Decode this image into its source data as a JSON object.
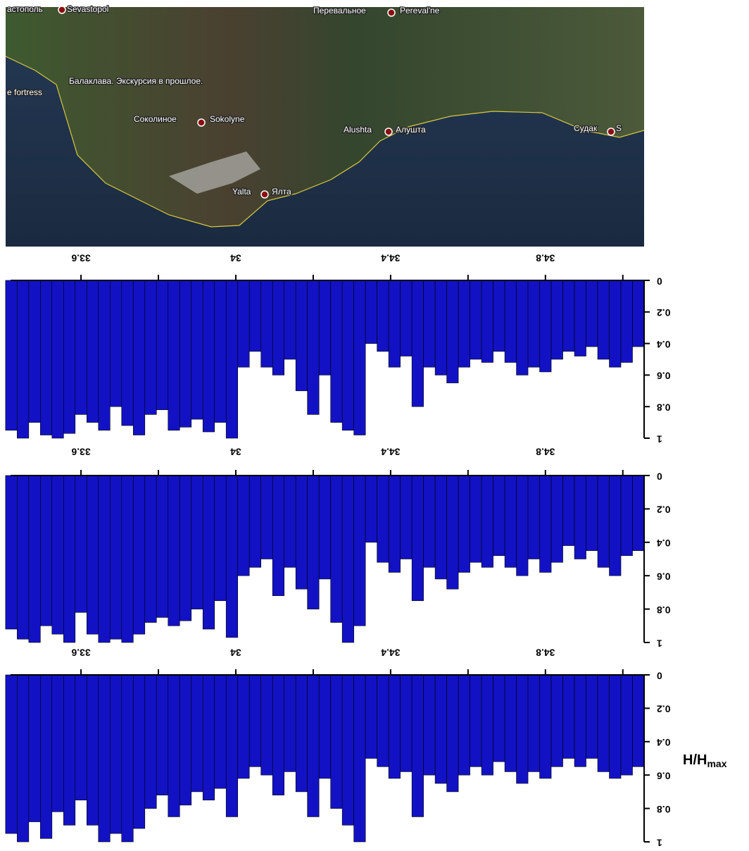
{
  "map": {
    "labels": [
      "астополь",
      "Sevastopol",
      "Перевальное",
      "Pereval'ne",
      "Балаклава. Экскурсия в прошлое.",
      "e fortress",
      "Соколиное",
      "Sokolyne",
      "Alushta",
      "Алушта",
      "Yalta",
      "Ялта",
      "Судак",
      "S"
    ]
  },
  "chart_data": [
    {
      "type": "bar",
      "color": "#1212c4",
      "x": [
        33.42,
        33.45,
        33.48,
        33.51,
        33.54,
        33.57,
        33.6,
        33.63,
        33.66,
        33.69,
        33.72,
        33.75,
        33.78,
        33.81,
        33.84,
        33.87,
        33.9,
        33.93,
        33.96,
        33.99,
        34.02,
        34.05,
        34.08,
        34.11,
        34.14,
        34.17,
        34.2,
        34.23,
        34.26,
        34.29,
        34.32,
        34.35,
        34.38,
        34.41,
        34.44,
        34.47,
        34.5,
        34.53,
        34.56,
        34.59,
        34.62,
        34.65,
        34.68,
        34.71,
        34.74,
        34.77,
        34.8,
        34.83,
        34.86,
        34.89,
        34.92,
        34.95,
        34.98,
        35.01,
        35.04
      ],
      "values": [
        0.95,
        1.0,
        0.9,
        0.98,
        1.0,
        0.97,
        0.85,
        0.9,
        0.95,
        0.8,
        0.92,
        0.98,
        0.85,
        0.82,
        0.95,
        0.93,
        0.88,
        0.96,
        0.9,
        1.0,
        0.55,
        0.45,
        0.55,
        0.6,
        0.5,
        0.7,
        0.85,
        0.6,
        0.9,
        0.95,
        0.98,
        0.4,
        0.45,
        0.55,
        0.48,
        0.8,
        0.55,
        0.6,
        0.65,
        0.55,
        0.5,
        0.52,
        0.45,
        0.52,
        0.6,
        0.55,
        0.58,
        0.5,
        0.45,
        0.48,
        0.42,
        0.5,
        0.55,
        0.52,
        0.42
      ],
      "xlim": [
        33.418,
        35.055
      ],
      "xticks": [
        33.6,
        34,
        34.4,
        34.8
      ],
      "xminorticks": [
        33.8,
        34.2,
        34.6,
        35.0
      ],
      "ylim": [
        0,
        1
      ],
      "yticks": [
        0,
        0.2,
        0.4,
        0.6,
        0.8,
        1
      ]
    },
    {
      "type": "bar",
      "color": "#1212c4",
      "x": [
        33.42,
        33.45,
        33.48,
        33.51,
        33.54,
        33.57,
        33.6,
        33.63,
        33.66,
        33.69,
        33.72,
        33.75,
        33.78,
        33.81,
        33.84,
        33.87,
        33.9,
        33.93,
        33.96,
        33.99,
        34.02,
        34.05,
        34.08,
        34.11,
        34.14,
        34.17,
        34.2,
        34.23,
        34.26,
        34.29,
        34.32,
        34.35,
        34.38,
        34.41,
        34.44,
        34.47,
        34.5,
        34.53,
        34.56,
        34.59,
        34.62,
        34.65,
        34.68,
        34.71,
        34.74,
        34.77,
        34.8,
        34.83,
        34.86,
        34.89,
        34.92,
        34.95,
        34.98,
        35.01,
        35.04
      ],
      "values": [
        0.92,
        0.98,
        1.0,
        0.9,
        0.95,
        1.0,
        0.82,
        0.95,
        1.0,
        0.98,
        1.0,
        0.95,
        0.88,
        0.85,
        0.9,
        0.87,
        0.8,
        0.92,
        0.75,
        0.97,
        0.6,
        0.55,
        0.5,
        0.72,
        0.55,
        0.68,
        0.8,
        0.62,
        0.88,
        1.0,
        0.9,
        0.4,
        0.52,
        0.58,
        0.5,
        0.75,
        0.55,
        0.62,
        0.68,
        0.58,
        0.52,
        0.55,
        0.48,
        0.55,
        0.6,
        0.5,
        0.58,
        0.52,
        0.42,
        0.5,
        0.45,
        0.55,
        0.6,
        0.48,
        0.45
      ],
      "xlim": [
        33.418,
        35.055
      ],
      "xticks": [
        33.6,
        34,
        34.4,
        34.8
      ],
      "xminorticks": [
        33.8,
        34.2,
        34.6,
        35.0
      ],
      "ylim": [
        0,
        1
      ],
      "yticks": [
        0,
        0.2,
        0.4,
        0.6,
        0.8,
        1
      ]
    },
    {
      "type": "bar",
      "color": "#1212c4",
      "x": [
        33.42,
        33.45,
        33.48,
        33.51,
        33.54,
        33.57,
        33.6,
        33.63,
        33.66,
        33.69,
        33.72,
        33.75,
        33.78,
        33.81,
        33.84,
        33.87,
        33.9,
        33.93,
        33.96,
        33.99,
        34.02,
        34.05,
        34.08,
        34.11,
        34.14,
        34.17,
        34.2,
        34.23,
        34.26,
        34.29,
        34.32,
        34.35,
        34.38,
        34.41,
        34.44,
        34.47,
        34.5,
        34.53,
        34.56,
        34.59,
        34.62,
        34.65,
        34.68,
        34.71,
        34.74,
        34.77,
        34.8,
        34.83,
        34.86,
        34.89,
        34.92,
        34.95,
        34.98,
        35.01,
        35.04
      ],
      "values": [
        0.95,
        1.0,
        0.88,
        0.98,
        0.82,
        0.9,
        0.75,
        0.9,
        1.0,
        0.95,
        1.0,
        0.92,
        0.8,
        0.72,
        0.85,
        0.78,
        0.7,
        0.75,
        0.68,
        0.85,
        0.62,
        0.55,
        0.6,
        0.72,
        0.58,
        0.7,
        0.85,
        0.62,
        0.8,
        0.9,
        1.0,
        0.5,
        0.55,
        0.62,
        0.58,
        0.85,
        0.6,
        0.65,
        0.7,
        0.6,
        0.55,
        0.6,
        0.52,
        0.58,
        0.65,
        0.58,
        0.62,
        0.55,
        0.5,
        0.55,
        0.5,
        0.58,
        0.62,
        0.6,
        0.55
      ],
      "xlim": [
        33.418,
        35.055
      ],
      "xticks": [
        33.6,
        34,
        34.4,
        34.8
      ],
      "xminorticks": [
        33.8,
        34.2,
        34.6,
        35.0
      ],
      "ylim": [
        0,
        1
      ],
      "yticks": [
        0,
        0.2,
        0.4,
        0.6,
        0.8,
        1
      ],
      "ylabel": "H/H",
      "ylabel_sub": "max"
    }
  ]
}
